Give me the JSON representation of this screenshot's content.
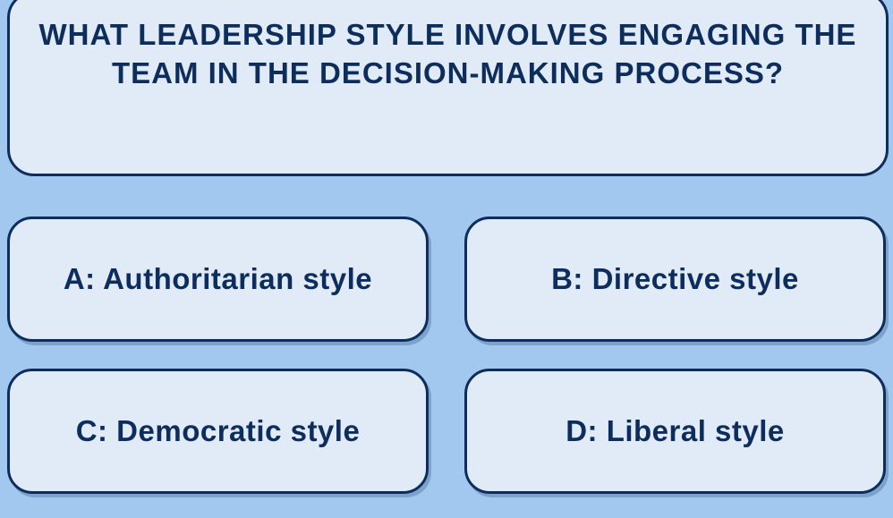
{
  "quiz": {
    "question": "WHAT LEADERSHIP STYLE INVOLVES ENGAGING THE TEAM IN THE DECISION-MAKING PROCESS?",
    "answers": {
      "a": "A: Authoritarian style",
      "b": "B: Directive style",
      "c": "C: Democratic style",
      "d": "D: Liberal style"
    }
  },
  "colors": {
    "page_background": "#a3c8f0",
    "card_background": "#e1eaf7",
    "border_and_text": "#0d2e5c",
    "shadow": "rgba(13,46,92,0.25)"
  },
  "typography": {
    "question_fontsize": 33,
    "question_weight": 800,
    "answer_fontsize": 33,
    "answer_weight": 900
  },
  "layout": {
    "card_border_radius": 28,
    "grid_columns": 2,
    "grid_row_gap": 30,
    "grid_col_gap": 40
  }
}
